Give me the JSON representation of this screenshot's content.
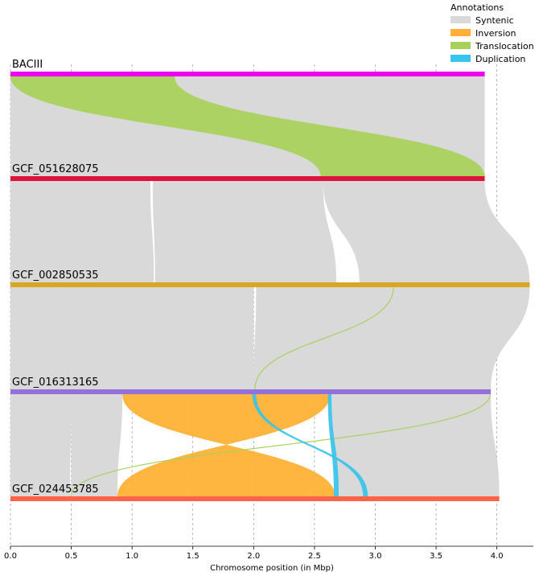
{
  "chart_data": {
    "type": "synteny",
    "xlabel": "Chromosome position (in Mbp)",
    "xlim": [
      0.0,
      4.3
    ],
    "xticks": [
      "0.0",
      "0.5",
      "1.0",
      "1.5",
      "2.0",
      "2.5",
      "3.0",
      "3.5",
      "4.0"
    ],
    "grid": "vertical-dashed",
    "legend": {
      "title": "Annotations",
      "placement": "top-right",
      "items": [
        {
          "label": "Syntenic",
          "color": "#d9d9d9"
        },
        {
          "label": "Inversion",
          "color": "#ffb033"
        },
        {
          "label": "Translocation",
          "color": "#a8d15a"
        },
        {
          "label": "Duplication",
          "color": "#38c4ec"
        }
      ]
    },
    "genomes": [
      {
        "name": "BACIII",
        "length": 3.9,
        "color": "#ee00ee"
      },
      {
        "name": "GCF_051628075",
        "length": 3.9,
        "color": "#dc143c"
      },
      {
        "name": "GCF_002850535",
        "length": 4.27,
        "color": "#daa520"
      },
      {
        "name": "GCF_016313165",
        "length": 3.95,
        "color": "#9370db"
      },
      {
        "name": "GCF_024453785",
        "length": 4.02,
        "color": "#ff6347"
      }
    ],
    "links": [
      {
        "from": 0,
        "to": 1,
        "type": "Syntenic",
        "a": [
          0.0,
          3.9
        ],
        "b": [
          0.0,
          3.9
        ]
      },
      {
        "from": 0,
        "to": 1,
        "type": "Translocation",
        "a": [
          0.0,
          1.35
        ],
        "b": [
          2.55,
          3.9
        ]
      },
      {
        "from": 1,
        "to": 2,
        "type": "Syntenic",
        "a": [
          0.0,
          1.15
        ],
        "b": [
          0.0,
          1.18
        ]
      },
      {
        "from": 1,
        "to": 2,
        "type": "Syntenic",
        "a": [
          1.17,
          2.57
        ],
        "b": [
          1.19,
          2.68
        ]
      },
      {
        "from": 1,
        "to": 2,
        "type": "Syntenic",
        "a": [
          2.57,
          3.9
        ],
        "b": [
          2.87,
          4.27
        ]
      },
      {
        "from": 2,
        "to": 3,
        "type": "Syntenic",
        "a": [
          0.0,
          2.0
        ],
        "b": [
          0.0,
          2.0
        ]
      },
      {
        "from": 2,
        "to": 3,
        "type": "Syntenic",
        "a": [
          2.02,
          3.15
        ],
        "b": [
          2.0,
          3.0
        ]
      },
      {
        "from": 2,
        "to": 3,
        "type": "Syntenic",
        "a": [
          3.15,
          4.27
        ],
        "b": [
          2.97,
          3.95
        ]
      },
      {
        "from": 2,
        "to": 3,
        "type": "Translocation",
        "a": [
          3.14,
          3.16
        ],
        "b": [
          2.0,
          2.02
        ]
      },
      {
        "from": 3,
        "to": 4,
        "type": "Syntenic",
        "a": [
          0.0,
          0.5
        ],
        "b": [
          0.0,
          0.49
        ]
      },
      {
        "from": 3,
        "to": 4,
        "type": "Syntenic",
        "a": [
          0.5,
          0.92
        ],
        "b": [
          0.5,
          0.88
        ]
      },
      {
        "from": 3,
        "to": 4,
        "type": "Inversion",
        "a": [
          0.92,
          2.63
        ],
        "b": [
          0.88,
          2.67
        ]
      },
      {
        "from": 3,
        "to": 4,
        "type": "Syntenic",
        "a": [
          2.63,
          3.95
        ],
        "b": [
          2.68,
          4.02
        ]
      },
      {
        "from": 3,
        "to": 4,
        "type": "Duplication",
        "a": [
          2.61,
          2.64
        ],
        "b": [
          2.66,
          2.7
        ]
      },
      {
        "from": 3,
        "to": 4,
        "type": "Duplication",
        "a": [
          1.99,
          2.02
        ],
        "b": [
          2.9,
          2.94
        ]
      },
      {
        "from": 3,
        "to": 4,
        "type": "Translocation",
        "a": [
          3.94,
          3.95
        ],
        "b": [
          0.49,
          0.5
        ]
      }
    ]
  }
}
